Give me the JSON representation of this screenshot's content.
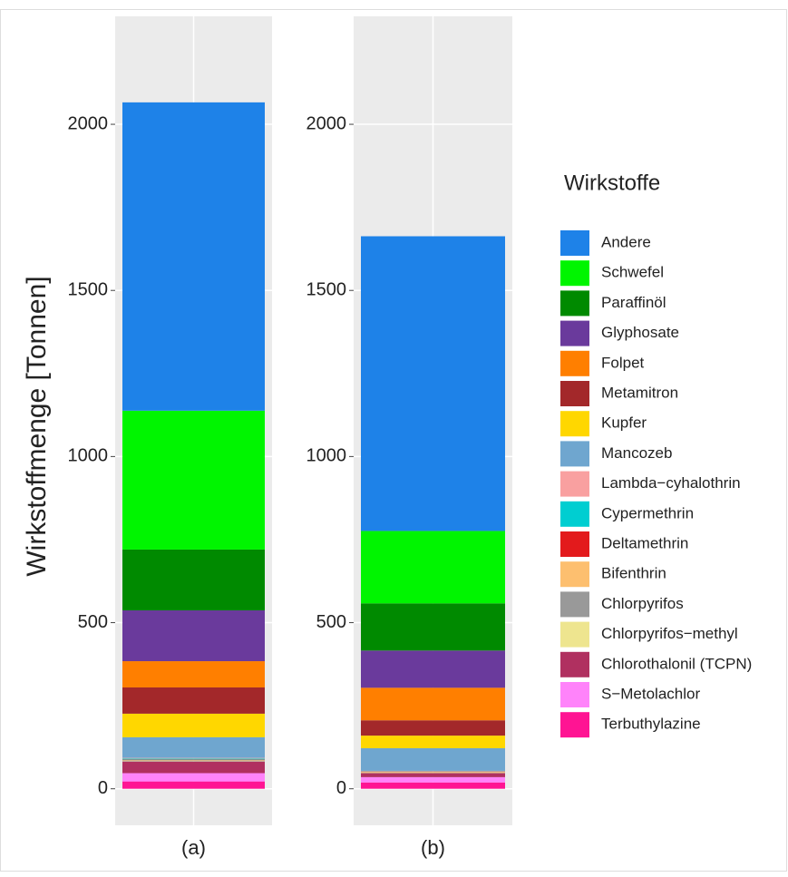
{
  "chart_data": {
    "type": "bar",
    "stacked": true,
    "y_label": "Wirkstoffmenge [Tonnen]",
    "legend_title": "Wirkstoffe",
    "categories": [
      "(a)",
      "(b)"
    ],
    "ylim": [
      -110,
      2325
    ],
    "yticks": [
      0,
      500,
      1000,
      1500,
      2000
    ],
    "grid": true,
    "series": [
      {
        "name": "Andere",
        "color": "#1E82E8",
        "values": [
          928,
          887
        ]
      },
      {
        "name": "Schwefel",
        "color": "#00F500",
        "values": [
          418,
          218
        ]
      },
      {
        "name": "Paraffinöl",
        "color": "#008A00",
        "values": [
          183,
          142
        ]
      },
      {
        "name": "Glyphosate",
        "color": "#6A3A9C",
        "values": [
          153,
          112
        ]
      },
      {
        "name": "Folpet",
        "color": "#FF7F00",
        "values": [
          79,
          98
        ]
      },
      {
        "name": "Metamitron",
        "color": "#A3282A",
        "values": [
          79,
          46
        ]
      },
      {
        "name": "Kupfer",
        "color": "#FFD700",
        "values": [
          71,
          38
        ]
      },
      {
        "name": "Mancozeb",
        "color": "#6FA6CF",
        "values": [
          62,
          68
        ]
      },
      {
        "name": "Lambda−cyhalothrin",
        "color": "#F9A0A0",
        "values": [
          2,
          1
        ]
      },
      {
        "name": "Cypermethrin",
        "color": "#00CED1",
        "values": [
          3,
          1
        ]
      },
      {
        "name": "Deltamethrin",
        "color": "#E31A1C",
        "values": [
          1,
          1
        ]
      },
      {
        "name": "Bifenthrin",
        "color": "#FDBF6F",
        "values": [
          2,
          2
        ]
      },
      {
        "name": "Chlorpyrifos",
        "color": "#999999",
        "values": [
          2,
          1
        ]
      },
      {
        "name": "Chlorpyrifos−methyl",
        "color": "#EEE58F",
        "values": [
          1,
          1
        ]
      },
      {
        "name": "Chlorothalonil (TCPN)",
        "color": "#B03060",
        "values": [
          35,
          12
        ]
      },
      {
        "name": "S−Metolachlor",
        "color": "#FF83FA",
        "values": [
          25,
          16
        ]
      },
      {
        "name": "Terbuthylazine",
        "color": "#FF1493",
        "values": [
          22,
          19
        ]
      }
    ]
  }
}
